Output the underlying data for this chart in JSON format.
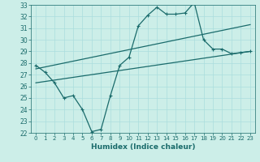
{
  "title": "",
  "xlabel": "Humidex (Indice chaleur)",
  "ylabel": "",
  "xlim": [
    -0.5,
    23.5
  ],
  "ylim": [
    22,
    33
  ],
  "xticks": [
    0,
    1,
    2,
    3,
    4,
    5,
    6,
    7,
    8,
    9,
    10,
    11,
    12,
    13,
    14,
    15,
    16,
    17,
    18,
    19,
    20,
    21,
    22,
    23
  ],
  "yticks": [
    22,
    23,
    24,
    25,
    26,
    27,
    28,
    29,
    30,
    31,
    32,
    33
  ],
  "bg_color": "#cceee8",
  "line_color": "#1a6b6b",
  "grid_color": "#aadddd",
  "main_x": [
    0,
    1,
    2,
    3,
    4,
    5,
    6,
    7,
    8,
    9,
    10,
    11,
    12,
    13,
    14,
    15,
    16,
    17,
    18,
    19,
    20,
    21,
    22,
    23
  ],
  "main_y": [
    27.8,
    27.2,
    26.3,
    25.0,
    25.2,
    24.0,
    22.1,
    22.3,
    25.2,
    27.8,
    28.5,
    31.2,
    32.1,
    32.8,
    32.2,
    32.2,
    32.3,
    33.2,
    30.0,
    29.2,
    29.2,
    28.8,
    28.9,
    29.0
  ],
  "line2_x": [
    0,
    23
  ],
  "line2_y": [
    27.5,
    31.3
  ],
  "line3_x": [
    0,
    23
  ],
  "line3_y": [
    26.3,
    29.0
  ]
}
